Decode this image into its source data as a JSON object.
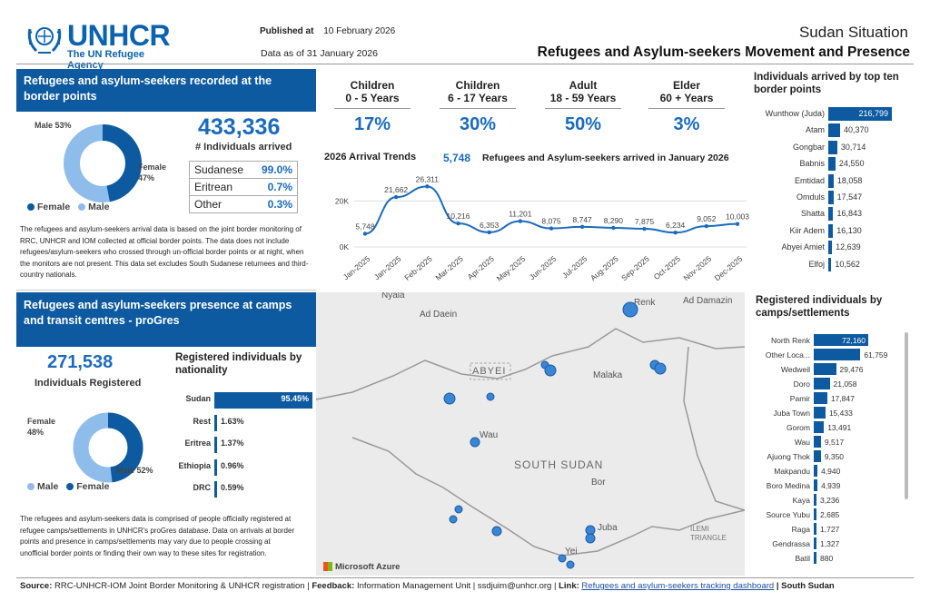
{
  "header": {
    "logo_name": "UNHCR",
    "logo_tagline": "The UN Refugee Agency",
    "published_label": "Published at",
    "published_date": "10 February 2026",
    "data_as_of": "Data as of 31 January 2026",
    "situation": "Sudan Situation",
    "title": "Refugees and Asylum-seekers Movement and Presence"
  },
  "border": {
    "banner": "Refugees and asylum-seekers recorded at the border points",
    "total": "433,336",
    "total_label": "# Individuals arrived",
    "male_label": "Male 53%",
    "female_label": "Female 47%",
    "female_pct": 47,
    "legend_female": "Female",
    "legend_male": "Male",
    "nationalities": [
      {
        "name": "Sudanese",
        "pct": "99.0%"
      },
      {
        "name": "Eritrean",
        "pct": "0.7%"
      },
      {
        "name": "Other",
        "pct": "0.3%"
      }
    ],
    "note": "The refugees and asylum-seekers arrival data is based on the joint border monitoring of RRC, UNHCR and IOM collected at official border points. The data does not include refugees/asylum-seekers who crossed through un-official border points or at night, when the monitors are not present. This data set excludes South Sudanese returnees and third-country nationals."
  },
  "age_groups": [
    {
      "title1": "Children",
      "title2": "0 - 5 Years",
      "pct": "17%"
    },
    {
      "title1": "Children",
      "title2": "6 - 17 Years",
      "pct": "30%"
    },
    {
      "title1": "Adult",
      "title2": "18 - 59 Years",
      "pct": "50%"
    },
    {
      "title1": "Elder",
      "title2": "60 + Years",
      "pct": "3%"
    }
  ],
  "trend": {
    "title": "2026 Arrival Trends",
    "jan_value": "5,748",
    "jan_label": "Refugees and Asylum-seekers arrived in January 2026"
  },
  "chart_data": [
    {
      "type": "line",
      "title": "2026 Arrival Trends",
      "categories": [
        "Jan-2025",
        "Jan-2025",
        "Feb-2025",
        "Mar-2025",
        "Apr-2025",
        "May-2025",
        "Jun-2025",
        "Jul-2025",
        "Aug-2025",
        "Sep-2025",
        "Oct-2025",
        "Nov-2025",
        "Dec-2025"
      ],
      "values": [
        5748,
        21662,
        26311,
        10216,
        6353,
        11201,
        8075,
        8747,
        8290,
        7875,
        6234,
        9052,
        10003
      ],
      "labels": [
        "5,748",
        "21,662",
        "26,311",
        "10,216",
        "6,353",
        "11,201",
        "8,075",
        "8,747",
        "8,290",
        "7,875",
        "6,234",
        "9,052",
        "10,003"
      ],
      "yticks": [
        "0K",
        "20K"
      ],
      "ylim": [
        0,
        30000
      ]
    },
    {
      "type": "bar",
      "title": "Individuals arrived by top ten border points",
      "categories": [
        "Wunthow (Juda)",
        "Atam",
        "Gongbar",
        "Babnis",
        "Emtidad",
        "Omduls",
        "Shatta",
        "Kiir Adem",
        "Abyei Amiet",
        "Elfoj"
      ],
      "values": [
        216799,
        40370,
        30714,
        24550,
        18058,
        17547,
        16843,
        16130,
        12639,
        10562
      ],
      "labels": [
        "216,799",
        "40,370",
        "30,714",
        "24,550",
        "18,058",
        "17,547",
        "16,843",
        "16,130",
        "12,639",
        "10,562"
      ]
    },
    {
      "type": "bar",
      "title": "Registered individuals by nationality",
      "categories": [
        "Sudan",
        "Rest",
        "Eritrea",
        "Ethiopia",
        "DRC"
      ],
      "values": [
        95.45,
        1.63,
        1.37,
        0.96,
        0.59
      ],
      "labels": [
        "95.45%",
        "1.63%",
        "1.37%",
        "0.96%",
        "0.59%"
      ]
    },
    {
      "type": "bar",
      "title": "Registered individuals by camps/settlements",
      "categories": [
        "North Renk",
        "Other Loca...",
        "Wedweil",
        "Doro",
        "Pamir",
        "Juba Town",
        "Gorom",
        "Wau",
        "Ajuong Thok",
        "Makpandu",
        "Boro Medina",
        "Kaya",
        "Source Yubu",
        "Raga",
        "Gendrassa",
        "Batil"
      ],
      "values": [
        72160,
        61759,
        29476,
        21058,
        17847,
        15433,
        13491,
        9517,
        9350,
        4940,
        4939,
        3236,
        2685,
        1727,
        1327,
        880
      ],
      "labels": [
        "72,160",
        "61,759",
        "29,476",
        "21,058",
        "17,847",
        "15,433",
        "13,491",
        "9,517",
        "9,350",
        "4,940",
        "4,939",
        "3,236",
        "2,685",
        "1,727",
        "1,327",
        "880"
      ]
    }
  ],
  "border_points_title": "Individuals arrived by top ten border points",
  "presence": {
    "banner": "Refugees and asylum-seekers presence at camps and transit centres - proGres",
    "total": "271,538",
    "total_label": "Individuals Registered",
    "female_label": "Female 48%",
    "male_label": "Male 52%",
    "female_pct": 48,
    "legend_male": "Male",
    "legend_female": "Female",
    "nationality_title": "Registered individuals by nationality",
    "note": "The refugees and asylum-seekers data is comprised of people officially registered at refugee camps/settlements in UNHCR's proGres database. Data on arrivals at border points and presence in camps/settlements may vary due to people crossing at unofficial border points or finding their own way to these sites for registration."
  },
  "camps_title": "Registered individuals by camps/settlements",
  "map": {
    "labels": [
      "Nyala",
      "Ad Daein",
      "Renk",
      "Ad Damazin",
      "ABYEI",
      "Malaka",
      "Wau",
      "SOUTH SUDAN",
      "Bor",
      "Juba",
      "Yei",
      "ILEMI TRIANGLE"
    ],
    "credit": "Microsoft Azure"
  },
  "footer": {
    "source_label": "Source:",
    "source_text": "RRC-UNHCR-IOM Joint Border Monitoring & UNHCR registration |",
    "feedback_label": "Feedback:",
    "feedback_text": "Information Management Unit | ssdjuim@unhcr.org |",
    "link_label": "Link:",
    "link_text": "Refugees and asylum-seekers tracking dashboard",
    "end": "| South Sudan"
  },
  "colors": {
    "primary": "#0d5aa0",
    "accent": "#1a6bbf",
    "light": "#7db3e8"
  }
}
